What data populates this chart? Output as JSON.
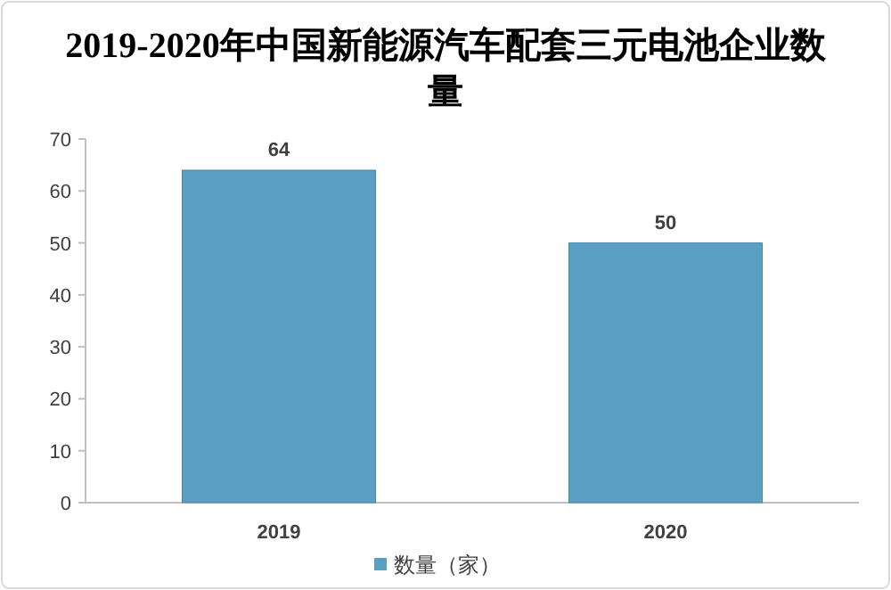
{
  "chart_data": {
    "type": "bar",
    "title": "2019-2020年中国新能源汽车配套三元电池企业数量",
    "categories": [
      "2019",
      "2020"
    ],
    "series": [
      {
        "name": "数量（家）",
        "color": "#5b9ec4",
        "values": [
          64,
          50
        ]
      }
    ],
    "ylim": [
      0,
      70
    ],
    "yticks": [
      0,
      10,
      20,
      30,
      40,
      50,
      60,
      70
    ],
    "data_labels": true,
    "legend": "bottom",
    "grid": false
  }
}
